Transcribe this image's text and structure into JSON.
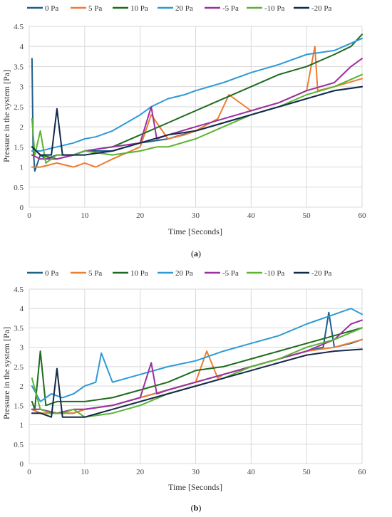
{
  "chart_data": [
    {
      "type": "line",
      "caption_letter": "a",
      "xlabel": "Time [Seconds]",
      "ylabel": "Pressure in the system [Pa]",
      "xlim": [
        0,
        60
      ],
      "ylim": [
        0,
        4.5
      ],
      "xticks": [
        0,
        10,
        20,
        30,
        40,
        50,
        60
      ],
      "yticks": [
        "0",
        "0.5",
        "1",
        "1.5",
        "2",
        "2.5",
        "3",
        "3.5",
        "4",
        "4.5"
      ],
      "grid": true,
      "legend_position": "top",
      "series": [
        {
          "name": "0 Pa",
          "color": "#1f5f8b",
          "x": [
            0.5,
            0.7,
            1,
            2,
            3,
            5,
            8,
            10,
            15,
            20,
            25,
            30,
            35,
            40,
            45,
            50,
            55,
            60
          ],
          "y": [
            3.7,
            1.5,
            0.9,
            1.3,
            1.2,
            1.3,
            1.3,
            1.4,
            1.4,
            1.6,
            1.7,
            1.9,
            2.1,
            2.3,
            2.5,
            2.7,
            2.9,
            3.0
          ]
        },
        {
          "name": "5 Pa",
          "color": "#ed7d31",
          "x": [
            0.5,
            2,
            5,
            8,
            10,
            12,
            15,
            20,
            22,
            25,
            28,
            30,
            34,
            36,
            40,
            45,
            50,
            51.5,
            52,
            55,
            60
          ],
          "y": [
            1.0,
            1.0,
            1.1,
            1.0,
            1.1,
            1.0,
            1.2,
            1.5,
            2.3,
            1.7,
            1.8,
            1.9,
            2.2,
            2.8,
            2.4,
            2.6,
            2.9,
            4.0,
            2.9,
            3.0,
            3.2
          ]
        },
        {
          "name": "10 Pa",
          "color": "#1e6b1e",
          "x": [
            0.5,
            2,
            5,
            8,
            10,
            15,
            20,
            25,
            30,
            35,
            40,
            45,
            50,
            55,
            58,
            60
          ],
          "y": [
            1.5,
            1.3,
            1.2,
            1.3,
            1.4,
            1.5,
            1.8,
            2.1,
            2.4,
            2.7,
            3.0,
            3.3,
            3.5,
            3.8,
            4.0,
            4.3
          ]
        },
        {
          "name": "20 Pa",
          "color": "#2e9bd6",
          "x": [
            0.5,
            2,
            5,
            8,
            10,
            12,
            15,
            20,
            22,
            25,
            28,
            30,
            35,
            40,
            45,
            50,
            55,
            60
          ],
          "y": [
            1.4,
            1.4,
            1.5,
            1.6,
            1.7,
            1.75,
            1.9,
            2.3,
            2.5,
            2.7,
            2.8,
            2.9,
            3.1,
            3.35,
            3.55,
            3.8,
            3.9,
            4.2
          ]
        },
        {
          "name": "-5 Pa",
          "color": "#9b30a0",
          "x": [
            0.5,
            2,
            5,
            8,
            10,
            15,
            20,
            22,
            23,
            25,
            30,
            35,
            40,
            45,
            50,
            55,
            58,
            60
          ],
          "y": [
            1.3,
            1.2,
            1.2,
            1.3,
            1.4,
            1.5,
            1.6,
            2.5,
            1.7,
            1.8,
            2.0,
            2.2,
            2.4,
            2.6,
            2.9,
            3.1,
            3.5,
            3.7
          ]
        },
        {
          "name": "-10 Pa",
          "color": "#5ab431",
          "x": [
            0.5,
            1,
            2,
            3,
            5,
            8,
            10,
            15,
            20,
            23,
            25,
            30,
            35,
            40,
            45,
            50,
            55,
            60
          ],
          "y": [
            2.2,
            1.3,
            1.9,
            1.1,
            1.3,
            1.3,
            1.4,
            1.3,
            1.4,
            1.5,
            1.5,
            1.7,
            2.0,
            2.3,
            2.5,
            2.8,
            3.0,
            3.3
          ]
        },
        {
          "name": "-20 Pa",
          "color": "#13294b",
          "x": [
            0.5,
            2,
            4,
            5,
            6,
            8,
            10,
            15,
            20,
            25,
            30,
            35,
            40,
            45,
            50,
            55,
            60
          ],
          "y": [
            1.5,
            1.3,
            1.3,
            2.45,
            1.3,
            1.3,
            1.3,
            1.4,
            1.6,
            1.8,
            1.9,
            2.1,
            2.3,
            2.5,
            2.7,
            2.9,
            3.0
          ]
        }
      ]
    },
    {
      "type": "line",
      "caption_letter": "b",
      "xlabel": "Time [Seconds]",
      "ylabel": "Pressure in the system [Pa]",
      "xlim": [
        0,
        60
      ],
      "ylim": [
        0,
        4.5
      ],
      "xticks": [
        0,
        10,
        20,
        30,
        40,
        50,
        60
      ],
      "yticks": [
        "0",
        "0.5",
        "1",
        "1.5",
        "2",
        "2.5",
        "3",
        "3.5",
        "4",
        "4.5"
      ],
      "grid": true,
      "legend_position": "top",
      "series": [
        {
          "name": "0 Pa",
          "color": "#1f5f8b",
          "x": [
            0.5,
            2,
            5,
            8,
            10,
            15,
            20,
            25,
            30,
            35,
            40,
            45,
            50,
            53,
            54,
            55,
            58,
            60
          ],
          "y": [
            1.4,
            1.3,
            1.3,
            1.3,
            1.4,
            1.5,
            1.7,
            1.9,
            2.1,
            2.3,
            2.5,
            2.7,
            2.9,
            3.0,
            3.9,
            3.0,
            3.1,
            3.2
          ]
        },
        {
          "name": "5 Pa",
          "color": "#ed7d31",
          "x": [
            0.5,
            2,
            5,
            8,
            10,
            15,
            20,
            25,
            30,
            32,
            34,
            35,
            40,
            45,
            50,
            55,
            60
          ],
          "y": [
            1.4,
            1.3,
            1.3,
            1.3,
            1.4,
            1.5,
            1.7,
            1.9,
            2.1,
            2.9,
            2.2,
            2.3,
            2.5,
            2.7,
            2.9,
            3.0,
            3.2
          ]
        },
        {
          "name": "10 Pa",
          "color": "#1e6b1e",
          "x": [
            0.5,
            1,
            2,
            3,
            5,
            8,
            10,
            15,
            20,
            25,
            30,
            35,
            40,
            45,
            50,
            55,
            60
          ],
          "y": [
            1.6,
            1.4,
            2.9,
            1.5,
            1.6,
            1.6,
            1.6,
            1.7,
            1.9,
            2.1,
            2.4,
            2.5,
            2.7,
            2.9,
            3.1,
            3.3,
            3.5
          ]
        },
        {
          "name": "20 Pa",
          "color": "#2e9bd6",
          "x": [
            0.5,
            2,
            4,
            6,
            8,
            10,
            12,
            13,
            15,
            20,
            25,
            30,
            35,
            40,
            45,
            50,
            55,
            58,
            60
          ],
          "y": [
            2.0,
            1.6,
            1.8,
            1.7,
            1.8,
            2.0,
            2.1,
            2.85,
            2.1,
            2.3,
            2.5,
            2.65,
            2.9,
            3.1,
            3.3,
            3.6,
            3.85,
            4.0,
            3.85
          ]
        },
        {
          "name": "-5 Pa",
          "color": "#9b30a0",
          "x": [
            0.5,
            2,
            5,
            8,
            10,
            15,
            20,
            22,
            23,
            25,
            30,
            35,
            40,
            45,
            50,
            55,
            58,
            60
          ],
          "y": [
            1.4,
            1.4,
            1.3,
            1.4,
            1.4,
            1.5,
            1.7,
            2.6,
            1.8,
            1.9,
            2.1,
            2.3,
            2.5,
            2.7,
            2.9,
            3.2,
            3.6,
            3.7
          ]
        },
        {
          "name": "-10 Pa",
          "color": "#5ab431",
          "x": [
            0.5,
            2,
            4,
            6,
            8,
            10,
            15,
            20,
            25,
            30,
            35,
            40,
            45,
            50,
            55,
            60
          ],
          "y": [
            2.2,
            1.4,
            1.3,
            1.3,
            1.4,
            1.2,
            1.3,
            1.5,
            1.8,
            2.0,
            2.2,
            2.5,
            2.7,
            3.0,
            3.2,
            3.5
          ]
        },
        {
          "name": "-20 Pa",
          "color": "#13294b",
          "x": [
            0.5,
            2,
            4,
            5,
            6,
            8,
            10,
            15,
            20,
            25,
            30,
            35,
            40,
            45,
            50,
            55,
            60
          ],
          "y": [
            1.3,
            1.3,
            1.2,
            2.45,
            1.2,
            1.2,
            1.2,
            1.4,
            1.6,
            1.8,
            2.0,
            2.2,
            2.4,
            2.6,
            2.8,
            2.9,
            2.95
          ]
        }
      ]
    }
  ]
}
